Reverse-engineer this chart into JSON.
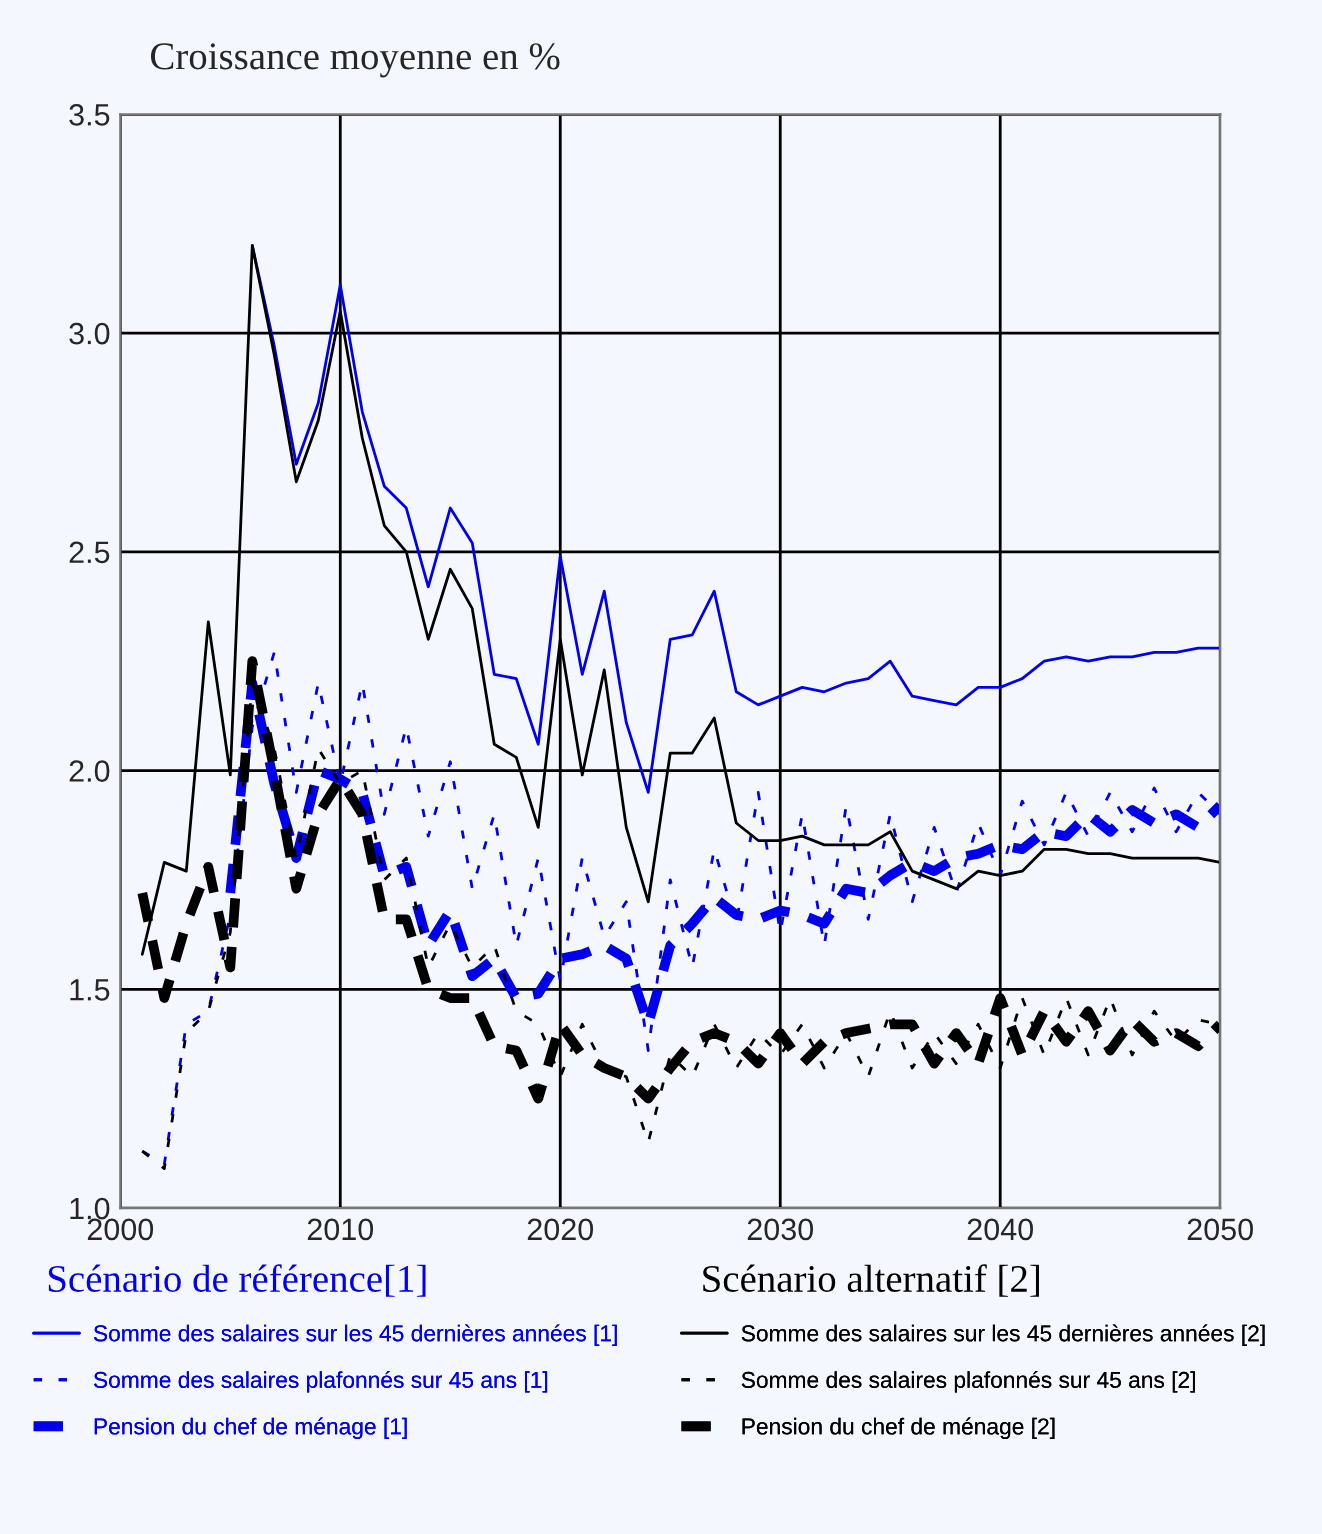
{
  "chart_data": {
    "type": "line",
    "title": "Croissance moyenne en %",
    "x": [
      2001,
      2002,
      2003,
      2004,
      2005,
      2006,
      2007,
      2008,
      2009,
      2010,
      2011,
      2012,
      2013,
      2014,
      2015,
      2016,
      2017,
      2018,
      2019,
      2020,
      2021,
      2022,
      2023,
      2024,
      2025,
      2026,
      2027,
      2028,
      2029,
      2030,
      2031,
      2032,
      2033,
      2034,
      2035,
      2036,
      2037,
      2038,
      2039,
      2040,
      2041,
      2042,
      2043,
      2044,
      2045,
      2046,
      2047,
      2048,
      2049,
      2050
    ],
    "series": [
      {
        "name": "Somme des salaires sur les 45 dernières années [1]",
        "color": "#0000ee",
        "line_style": "solid",
        "values": [
          null,
          null,
          null,
          null,
          null,
          3.2,
          2.97,
          2.7,
          2.84,
          3.11,
          2.82,
          2.65,
          2.6,
          2.42,
          2.6,
          2.52,
          2.22,
          2.21,
          2.06,
          2.49,
          2.22,
          2.41,
          2.11,
          1.95,
          2.3,
          2.31,
          2.41,
          2.18,
          2.15,
          2.17,
          2.19,
          2.18,
          2.2,
          2.21,
          2.25,
          2.17,
          2.16,
          2.15,
          2.19,
          2.19,
          2.21,
          2.25,
          2.26,
          2.25,
          2.26,
          2.26,
          2.27,
          2.27,
          2.28,
          2.28
        ]
      },
      {
        "name": "Somme des salaires plafonnés sur 45 ans [1]",
        "color": "#0000ee",
        "line_style": "dotted",
        "values": [
          1.13,
          1.1,
          1.42,
          1.45,
          1.67,
          2.1,
          2.27,
          1.95,
          2.2,
          1.97,
          2.2,
          1.9,
          2.1,
          1.85,
          2.02,
          1.73,
          1.9,
          1.6,
          1.8,
          1.52,
          1.8,
          1.62,
          1.7,
          1.36,
          1.75,
          1.55,
          1.82,
          1.65,
          1.95,
          1.63,
          1.9,
          1.6,
          1.92,
          1.66,
          1.9,
          1.7,
          1.87,
          1.72,
          1.88,
          1.76,
          1.93,
          1.83,
          1.95,
          1.85,
          1.95,
          1.86,
          1.96,
          1.86,
          1.95,
          1.9
        ]
      },
      {
        "name": "Pension du chef de ménage [1]",
        "color": "#0000ee",
        "line_style": "dashed",
        "values": [
          null,
          null,
          null,
          null,
          1.72,
          2.2,
          1.97,
          1.8,
          2.0,
          1.98,
          1.95,
          1.76,
          1.78,
          1.6,
          1.68,
          1.53,
          1.57,
          1.48,
          1.49,
          1.57,
          1.58,
          1.6,
          1.57,
          1.42,
          1.6,
          1.65,
          1.71,
          1.67,
          1.66,
          1.68,
          1.67,
          1.65,
          1.73,
          1.72,
          1.76,
          1.79,
          1.77,
          1.8,
          1.81,
          1.83,
          1.82,
          1.86,
          1.85,
          1.9,
          1.86,
          1.91,
          1.88,
          1.9,
          1.87,
          1.92
        ]
      },
      {
        "name": "Somme des salaires sur les 45 dernières années [2]",
        "color": "#000000",
        "line_style": "solid",
        "values": [
          1.58,
          1.79,
          1.77,
          2.34,
          1.99,
          3.2,
          2.95,
          2.66,
          2.8,
          3.05,
          2.76,
          2.56,
          2.5,
          2.3,
          2.46,
          2.37,
          2.06,
          2.03,
          1.87,
          2.3,
          1.99,
          2.23,
          1.87,
          1.7,
          2.04,
          2.04,
          2.12,
          1.88,
          1.84,
          1.84,
          1.85,
          1.83,
          1.83,
          1.83,
          1.86,
          1.77,
          1.75,
          1.73,
          1.77,
          1.76,
          1.77,
          1.82,
          1.82,
          1.81,
          1.81,
          1.8,
          1.8,
          1.8,
          1.8,
          1.79
        ]
      },
      {
        "name": "Somme des salaires plafonnés sur 45 ans [2]",
        "color": "#000000",
        "line_style": "dotted",
        "values": [
          1.13,
          1.09,
          1.4,
          1.45,
          1.63,
          2.2,
          2.05,
          1.8,
          2.05,
          1.97,
          2.0,
          1.75,
          1.8,
          1.55,
          1.65,
          1.55,
          1.6,
          1.45,
          1.42,
          1.3,
          1.42,
          1.32,
          1.3,
          1.15,
          1.35,
          1.3,
          1.42,
          1.32,
          1.4,
          1.35,
          1.42,
          1.32,
          1.4,
          1.3,
          1.45,
          1.32,
          1.4,
          1.33,
          1.42,
          1.32,
          1.48,
          1.35,
          1.48,
          1.35,
          1.48,
          1.35,
          1.45,
          1.38,
          1.43,
          1.42
        ]
      },
      {
        "name": "Pension du chef de ménage [2]",
        "color": "#000000",
        "line_style": "dashed",
        "values": [
          1.72,
          1.48,
          1.65,
          1.78,
          1.55,
          2.25,
          2.0,
          1.73,
          1.9,
          1.98,
          1.9,
          1.66,
          1.66,
          1.5,
          1.48,
          1.48,
          1.37,
          1.36,
          1.25,
          1.42,
          1.35,
          1.32,
          1.3,
          1.25,
          1.32,
          1.38,
          1.4,
          1.38,
          1.33,
          1.4,
          1.33,
          1.38,
          1.4,
          1.41,
          1.42,
          1.42,
          1.33,
          1.4,
          1.33,
          1.48,
          1.35,
          1.45,
          1.38,
          1.45,
          1.36,
          1.43,
          1.38,
          1.4,
          1.37,
          1.42
        ]
      }
    ],
    "xlim": [
      2000,
      2050
    ],
    "xticks": [
      2000,
      2010,
      2020,
      2030,
      2040,
      2050
    ],
    "ylim": [
      1.0,
      3.5
    ],
    "yticks": [
      {
        "value": 1.0,
        "label": "1.0"
      },
      {
        "value": 1.5,
        "label": "1.5"
      },
      {
        "value": 2.0,
        "label": "2.0"
      },
      {
        "value": 2.5,
        "label": "2.5"
      },
      {
        "value": 3.0,
        "label": "3.0"
      },
      {
        "value": 3.5,
        "label": "3.5"
      }
    ],
    "grid": true,
    "legend": "bottom",
    "marker": "none",
    "annotations": [
      "Scénario de référence[1]",
      "Scénario alternatif [2]"
    ]
  }
}
